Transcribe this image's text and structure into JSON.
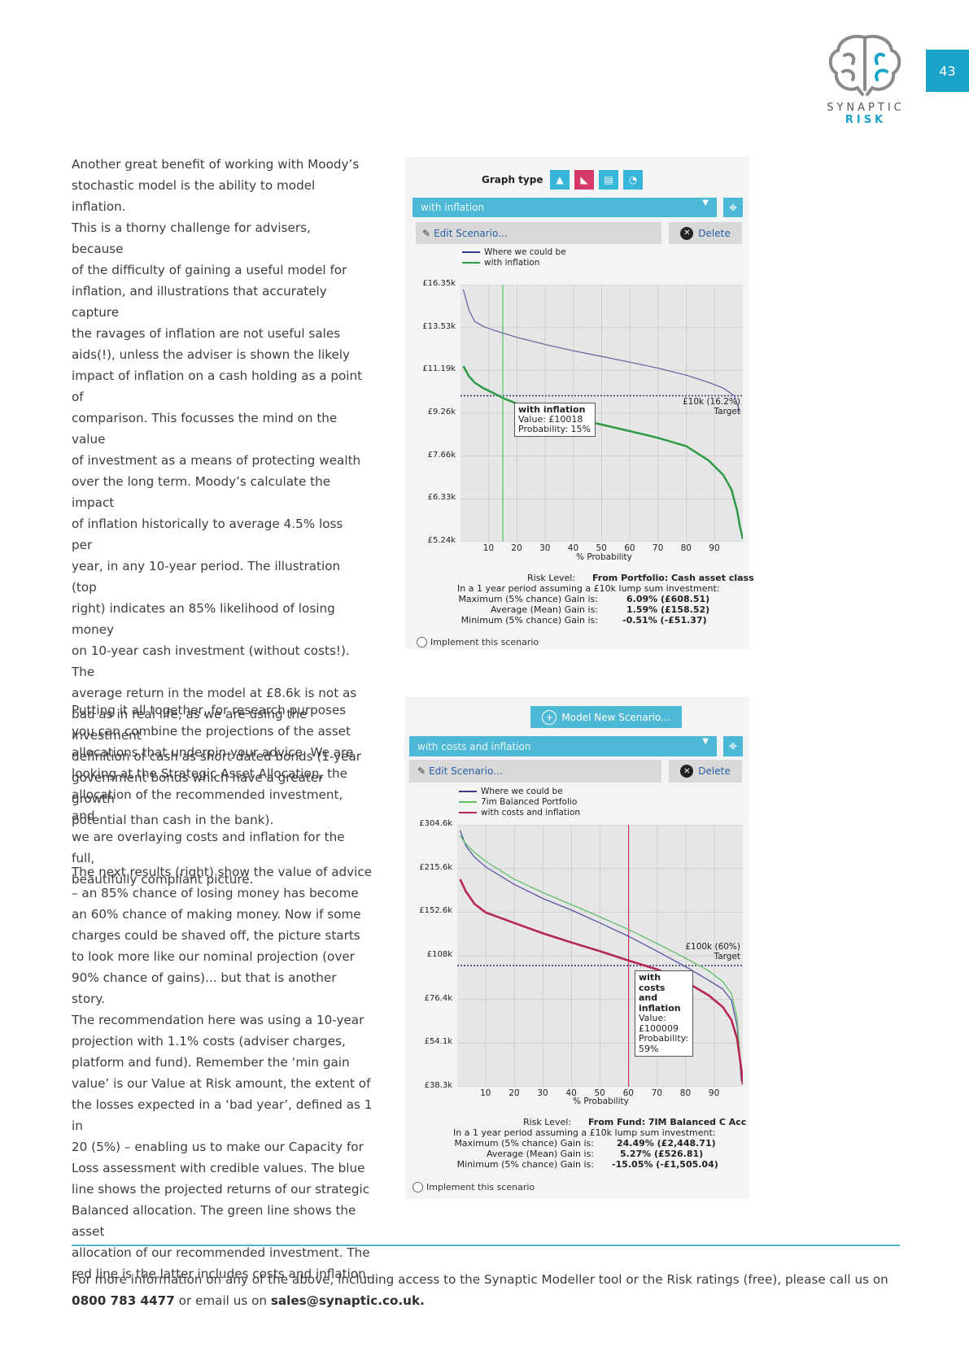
{
  "page_number": "43",
  "logo": {
    "line1": "SYNAPTIC",
    "line2": "RISK"
  },
  "para1": [
    "Another great benefit of working with Moody’s",
    "stochastic model is the ability to model inflation.",
    "This is a thorny challenge for advisers, because",
    "of the difficulty of gaining a useful model for",
    "inflation, and illustrations that accurately capture",
    "the ravages of inflation are not useful sales",
    "aids(!), unless the adviser is shown the likely",
    "impact of inflation on a cash holding as a point of",
    "comparison. This focusses the mind on the value",
    "of investment as a means of protecting wealth",
    "over the long term. Moody’s calculate the impact",
    "of inflation historically to average 4.5% loss per",
    "year, in any 10-year period. The illustration (top",
    "right) indicates an 85% likelihood of losing money",
    "on 10-year cash investment (without costs!). The",
    "average return in the model at £8.6k is not as",
    "bad as in real life, as we are using the investment",
    "definition of cash as short dated bonds (1-year",
    "government bonds which have a greater growth",
    "potential than cash in the bank)."
  ],
  "para2": [
    "Putting it all together, for research purposes",
    "you can combine the projections of the asset",
    "allocations that underpin your advice. We are",
    "looking at the Strategic Asset Allocation, the",
    "allocation of the recommended investment, and",
    "we are overlaying costs and inflation for the full,",
    "beautifully compliant picture."
  ],
  "para3": [
    "The next results (right) show the value of advice",
    "– an 85% chance of losing money has become",
    "an 60% chance of making money. Now if some",
    "charges could be shaved off, the picture starts",
    "to look more like our nominal projection (over",
    "90% chance of gains)... but that is another story.",
    "The recommendation here was using a 10-year",
    "projection with 1.1% costs (adviser charges,",
    "platform and fund). Remember the ‘min gain",
    "value’ is our Value at Risk amount, the extent of",
    "the losses expected in a ‘bad year’, defined as 1 in",
    "20 (5%) – enabling us to make our Capacity for",
    "Loss assessment with credible values. The blue",
    "line shows the projected returns of our strategic",
    "Balanced allocation. The green line shows the asset",
    "allocation of our recommended investment. The",
    "red line is the latter includes costs and inflation."
  ],
  "footer": {
    "text": "For more information on any of the above, including access to the Synaptic Modeller tool or the Risk ratings (free), please call us on",
    "phone": "0800 783 4477",
    "mid": " or email us on ",
    "email": "sales@synaptic.co.uk."
  },
  "widget1": {
    "graph_type_label": "Graph type",
    "scenario_select": "with inflation",
    "edit_label": "Edit Scenario...",
    "delete_label": "Delete",
    "legend": [
      "Where we could be",
      "with inflation"
    ],
    "target_label": "£10k (16.2%)",
    "target_word": "Target",
    "tooltip": {
      "title": "with inflation",
      "value": "Value: £10018",
      "prob": "Probability: 15%"
    },
    "risk_level_label": "Risk Level:",
    "risk_level_value": "From Portfolio: Cash asset class",
    "period_line": "In a 1 year period assuming a £10k lump sum investment:",
    "max_label": "Maximum (5% chance) Gain is:",
    "max_value": "6.09%   (£608.51)",
    "avg_label": "Average (Mean) Gain is:",
    "avg_value": "1.59%   (£158.52)",
    "min_label": "Minimum (5% chance) Gain is:",
    "min_value": "-0.51%   (-£51.37)",
    "implement_label": "Implement this scenario"
  },
  "widget2": {
    "model_new_label": "Model New Scenario...",
    "scenario_select": "with costs and inflation",
    "edit_label": "Edit Scenario...",
    "delete_label": "Delete",
    "legend": [
      "Where we could be",
      "7im Balanced Portfolio",
      "with costs and inflation"
    ],
    "target_label": "£100k (60%)",
    "target_word": "Target",
    "tooltip": {
      "title1": "with costs",
      "title2": "and",
      "title3": "inflation",
      "value1": "Value:",
      "value2": "£100009",
      "prob1": "Probability:",
      "prob2": "59%"
    },
    "risk_level_label": "Risk Level:",
    "risk_level_value": "From Fund: 7IM Balanced C Acc",
    "period_line": "In a 1 year period assuming a £10k lump sum investment:",
    "max_label": "Maximum (5% chance) Gain is:",
    "max_value": "24.49%   (£2,448.71)",
    "avg_label": "Average (Mean) Gain is:",
    "avg_value": "5.27%   (£526.81)",
    "min_label": "Minimum (5% chance) Gain is:",
    "min_value": "-15.05%   (-£1,505.04)",
    "implement_label": "Implement this scenario"
  },
  "chart_data": [
    {
      "type": "line",
      "xlabel": "% Probability",
      "ylabel": "",
      "xticks": [
        "10",
        "20",
        "30",
        "40",
        "50",
        "60",
        "70",
        "80",
        "90"
      ],
      "yticks": [
        "£16.35k",
        "£13.53k",
        "£11.19k",
        "£9.26k",
        "£7.66k",
        "£6.33k",
        "£5.24k"
      ],
      "xlim": [
        0,
        100
      ],
      "series": [
        {
          "name": "Where we could be",
          "color": "#6a6aa8",
          "x": [
            1,
            3,
            5,
            8,
            12,
            20,
            30,
            40,
            50,
            60,
            70,
            80,
            88,
            93,
            97,
            99
          ],
          "y": [
            16.0,
            14.6,
            13.9,
            13.6,
            13.35,
            12.95,
            12.55,
            12.2,
            11.9,
            11.6,
            11.3,
            10.95,
            10.6,
            10.35,
            10.0,
            9.3
          ]
        },
        {
          "name": "with inflation",
          "color": "#2e9a45",
          "x": [
            1,
            3,
            5,
            8,
            12,
            15,
            20,
            30,
            40,
            50,
            60,
            70,
            80,
            88,
            93,
            96,
            98,
            99,
            100
          ],
          "y": [
            11.4,
            10.9,
            10.6,
            10.35,
            10.1,
            9.9,
            9.65,
            9.3,
            9.05,
            8.8,
            8.55,
            8.3,
            8.0,
            7.5,
            7.05,
            6.6,
            6.0,
            5.6,
            5.3
          ]
        }
      ],
      "target": {
        "value": 10.0,
        "label": "£10k (16.2%)"
      },
      "marker_x": 15
    },
    {
      "type": "line",
      "xlabel": "% Probability",
      "ylabel": "",
      "xticks": [
        "10",
        "20",
        "30",
        "40",
        "50",
        "60",
        "70",
        "80",
        "90"
      ],
      "yticks": [
        "£304.6k",
        "£215.6k",
        "£152.6k",
        "£108k",
        "£76.4k",
        "£54.1k",
        "£38.3k"
      ],
      "xlim": [
        0,
        100
      ],
      "series": [
        {
          "name": "Where we could be",
          "color": "#5555a6",
          "x": [
            1,
            3,
            6,
            10,
            20,
            30,
            40,
            50,
            60,
            70,
            80,
            88,
            93,
            96,
            98,
            99.5
          ],
          "y": [
            292,
            258,
            236,
            218,
            190,
            170,
            155,
            140,
            126,
            112,
            99,
            89,
            83,
            76,
            62,
            40
          ]
        },
        {
          "name": "7im Balanced Portfolio",
          "color": "#5fbf6a",
          "x": [
            1,
            3,
            6,
            10,
            20,
            30,
            40,
            50,
            60,
            70,
            80,
            88,
            93,
            96,
            98,
            99.5
          ],
          "y": [
            280,
            262,
            245,
            228,
            198,
            178,
            162,
            147,
            133,
            119,
            106,
            96,
            88,
            80,
            66,
            42
          ]
        },
        {
          "name": "with costs and inflation",
          "color": "#b52650",
          "x": [
            1,
            3,
            6,
            10,
            20,
            30,
            40,
            50,
            60,
            70,
            80,
            88,
            93,
            96,
            98,
            99.5,
            100
          ],
          "y": [
            198,
            180,
            163,
            152,
            140,
            129,
            120,
            112,
            104,
            97,
            88,
            79,
            72,
            65,
            56,
            44,
            39
          ]
        }
      ],
      "target": {
        "value": 100,
        "label": "£100k (60%)"
      },
      "marker_x": 60
    }
  ]
}
